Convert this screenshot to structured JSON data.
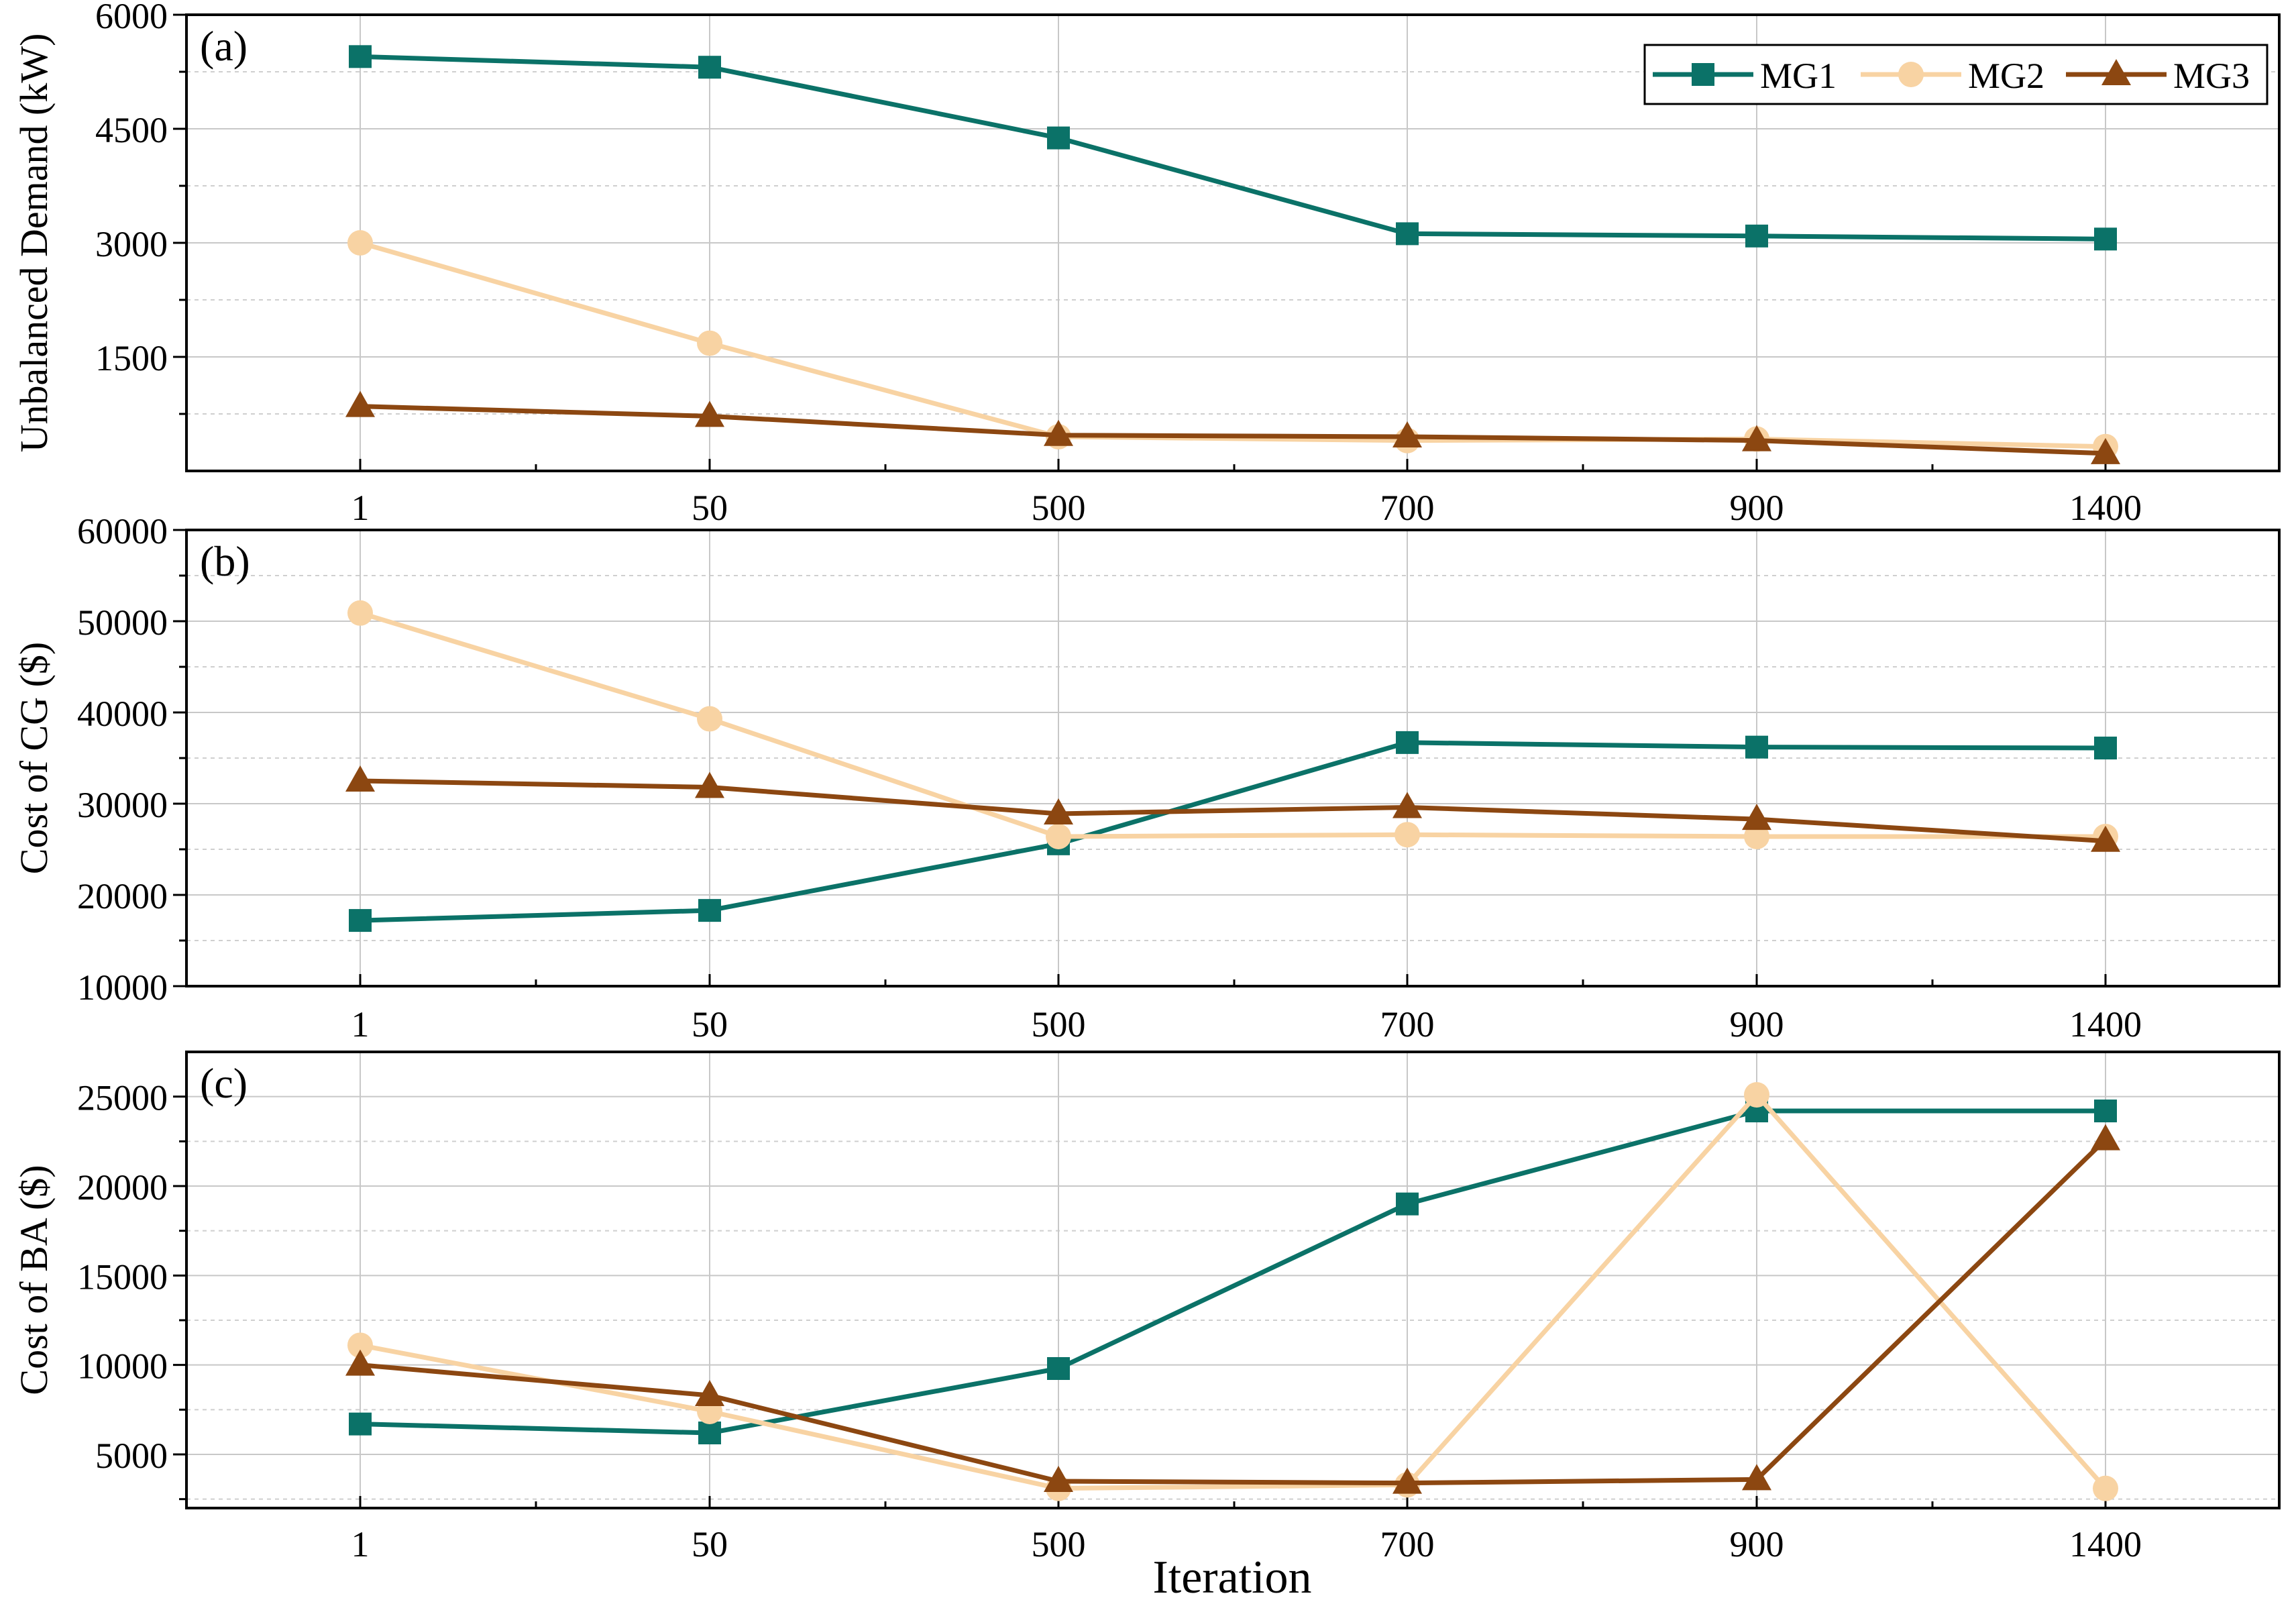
{
  "colors": {
    "MG1": "#0b7268",
    "MG2": "#f8d3a3",
    "MG3": "#8c4711"
  },
  "shared_xlabel": "Iteration",
  "chart_data": [
    {
      "type": "line",
      "panel_label": "(a)",
      "ylabel": "Unbalanced Demand (kW)",
      "categories": [
        "1",
        "50",
        "500",
        "700",
        "900",
        "1400"
      ],
      "ylim": [
        0,
        6000
      ],
      "yticks": [
        1500,
        3000,
        4500,
        6000
      ],
      "legend_position": "top-right",
      "series": [
        {
          "name": "MG1",
          "marker": "square",
          "values": [
            5450,
            5310,
            4380,
            3120,
            3090,
            3050
          ]
        },
        {
          "name": "MG2",
          "marker": "circle",
          "values": [
            3000,
            1680,
            450,
            400,
            420,
            320
          ]
        },
        {
          "name": "MG3",
          "marker": "triangle",
          "values": [
            850,
            720,
            470,
            450,
            400,
            230
          ]
        }
      ]
    },
    {
      "type": "line",
      "panel_label": "(b)",
      "ylabel": "Cost of CG ($)",
      "categories": [
        "1",
        "50",
        "500",
        "700",
        "900",
        "1400"
      ],
      "ylim": [
        10000,
        60000
      ],
      "yticks": [
        10000,
        20000,
        30000,
        40000,
        50000,
        60000
      ],
      "series": [
        {
          "name": "MG1",
          "marker": "square",
          "values": [
            17200,
            18300,
            25600,
            36700,
            36200,
            36100
          ]
        },
        {
          "name": "MG2",
          "marker": "circle",
          "values": [
            50900,
            39300,
            26400,
            26600,
            26400,
            26400
          ]
        },
        {
          "name": "MG3",
          "marker": "triangle",
          "values": [
            32500,
            31800,
            28900,
            29600,
            28300,
            25900
          ]
        }
      ]
    },
    {
      "type": "line",
      "panel_label": "(c)",
      "ylabel": "Cost of BA ($)",
      "xlabel": "Iteration",
      "categories": [
        "1",
        "50",
        "500",
        "700",
        "900",
        "1400"
      ],
      "ylim": [
        2000,
        27500
      ],
      "yticks": [
        5000,
        10000,
        15000,
        20000,
        25000
      ],
      "series": [
        {
          "name": "MG1",
          "marker": "square",
          "values": [
            6700,
            6200,
            9800,
            19000,
            24200,
            24200
          ]
        },
        {
          "name": "MG2",
          "marker": "circle",
          "values": [
            11100,
            7400,
            3100,
            3300,
            25100,
            3100
          ]
        },
        {
          "name": "MG3",
          "marker": "triangle",
          "values": [
            10000,
            8300,
            3500,
            3400,
            3600,
            22600
          ]
        }
      ]
    }
  ]
}
